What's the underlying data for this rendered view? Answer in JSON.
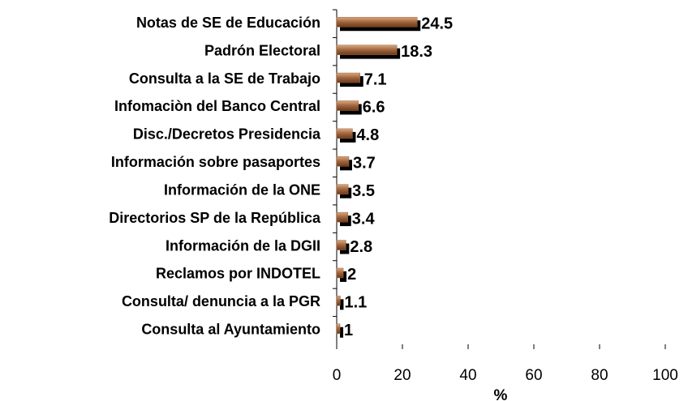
{
  "chart_data": {
    "type": "bar",
    "orientation": "horizontal",
    "categories": [
      "Notas de SE de Educación",
      "Padrón Electoral",
      "Consulta a la SE de Trabajo",
      "Infomaciòn del Banco Central",
      "Disc./Decretos Presidencia",
      "Información sobre pasaportes",
      "Información de la ONE",
      "Directorios SP de la República",
      "Información de la DGII",
      "Reclamos por INDOTEL",
      "Consulta/ denuncia a la PGR",
      "Consulta al Ayuntamiento"
    ],
    "values": [
      24.5,
      18.3,
      7.1,
      6.6,
      4.8,
      3.7,
      3.5,
      3.4,
      2.8,
      2,
      1.1,
      1
    ],
    "color": "#a0643c",
    "xlim": [
      0,
      100
    ],
    "xticks": [
      0,
      20,
      40,
      60,
      80,
      100
    ],
    "x_label": "%"
  }
}
